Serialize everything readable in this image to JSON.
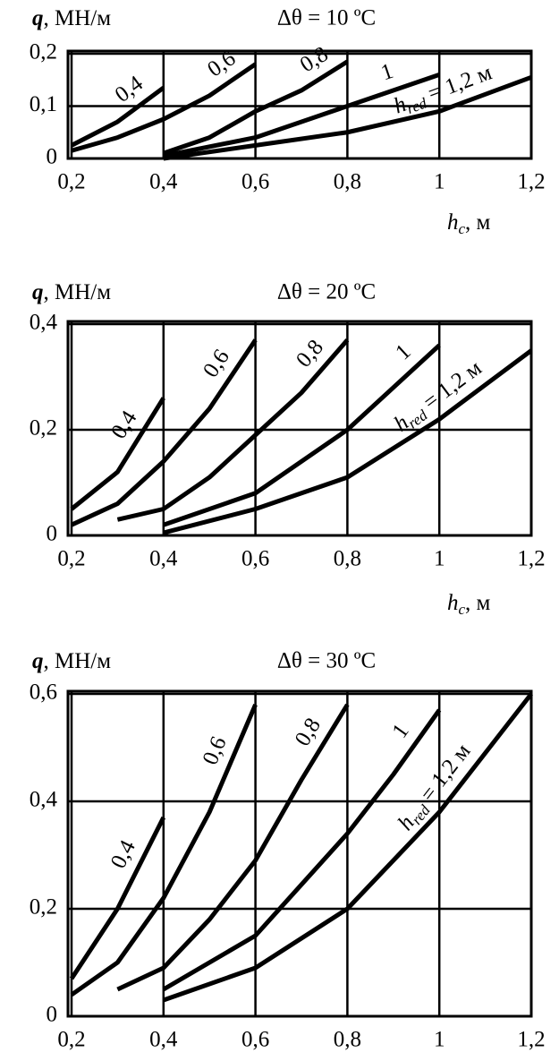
{
  "chart_data": [
    {
      "type": "line",
      "title": "Δθ = 10 ºC",
      "y_label": [
        "q",
        ", МН/м"
      ],
      "x_label": [
        "h",
        "c",
        ", м"
      ],
      "hred": [
        "h",
        "red",
        " = "
      ],
      "xlim": [
        0.2,
        1.2
      ],
      "ylim": [
        0,
        0.2
      ],
      "grid": true,
      "color": "#000000",
      "xticks": [
        {
          "value": 0.2,
          "label": "0,2"
        },
        {
          "value": 0.4,
          "label": "0,4"
        },
        {
          "value": 0.6,
          "label": "0,6"
        },
        {
          "value": 0.8,
          "label": "0,8"
        },
        1,
        {
          "value": 1.2,
          "label": "1,2"
        }
      ],
      "yticks": [
        0,
        {
          "value": 0.1,
          "label": "0,1"
        },
        {
          "value": 0.2,
          "label": "0,2"
        }
      ],
      "series": [
        {
          "name": "0,4",
          "x": [
            0.2,
            0.3,
            0.4
          ],
          "values": [
            0.025,
            0.07,
            0.135
          ]
        },
        {
          "name": "0,6",
          "x": [
            0.2,
            0.3,
            0.4,
            0.5,
            0.6
          ],
          "values": [
            0.015,
            0.04,
            0.075,
            0.12,
            0.18
          ]
        },
        {
          "name": "0,8",
          "x": [
            0.4,
            0.5,
            0.6,
            0.7,
            0.8
          ],
          "values": [
            0.01,
            0.04,
            0.09,
            0.13,
            0.185
          ]
        },
        {
          "name": "1",
          "x": [
            0.4,
            0.6,
            0.8,
            1
          ],
          "values": [
            0.005,
            0.04,
            0.1,
            0.16
          ]
        },
        {
          "name": "1,2 м",
          "x": [
            0.4,
            0.6,
            0.8,
            1,
            1.2
          ],
          "values": [
            0,
            0.025,
            0.05,
            0.09,
            0.155
          ]
        }
      ]
    },
    {
      "type": "line",
      "title": "Δθ = 20 ºC",
      "y_label": [
        "q",
        ", МН/м"
      ],
      "x_label": [
        "h",
        "c",
        ", м"
      ],
      "hred": [
        "h",
        "red",
        " = "
      ],
      "xlim": [
        0.2,
        1.2
      ],
      "ylim": [
        0,
        0.4
      ],
      "grid": true,
      "color": "#000000",
      "xticks": [
        {
          "value": 0.2,
          "label": "0,2"
        },
        {
          "value": 0.4,
          "label": "0,4"
        },
        {
          "value": 0.6,
          "label": "0,6"
        },
        {
          "value": 0.8,
          "label": "0,8"
        },
        1,
        {
          "value": 1.2,
          "label": "1,2"
        }
      ],
      "yticks": [
        0,
        {
          "value": 0.2,
          "label": "0,2"
        },
        {
          "value": 0.4,
          "label": "0,4"
        }
      ],
      "series": [
        {
          "name": "0,4",
          "x": [
            0.2,
            0.3,
            0.4
          ],
          "values": [
            0.05,
            0.12,
            0.26
          ]
        },
        {
          "name": "0,6",
          "x": [
            0.2,
            0.3,
            0.4,
            0.5,
            0.6
          ],
          "values": [
            0.02,
            0.06,
            0.14,
            0.24,
            0.37
          ]
        },
        {
          "name": "0,8",
          "x": [
            0.3,
            0.4,
            0.5,
            0.6,
            0.7,
            0.8
          ],
          "values": [
            0.03,
            0.05,
            0.11,
            0.19,
            0.27,
            0.37
          ]
        },
        {
          "name": "1",
          "x": [
            0.4,
            0.6,
            0.8,
            0.9,
            1
          ],
          "values": [
            0.02,
            0.08,
            0.2,
            0.28,
            0.36
          ]
        },
        {
          "name": "1,2 м",
          "x": [
            0.4,
            0.6,
            0.8,
            1,
            1.2
          ],
          "values": [
            0.005,
            0.05,
            0.11,
            0.22,
            0.35
          ]
        }
      ]
    },
    {
      "type": "line",
      "title": "Δθ = 30 ºC",
      "y_label": [
        "q",
        ", МН/м"
      ],
      "hred": [
        "h",
        "red",
        " = "
      ],
      "xlim": [
        0.2,
        1.2
      ],
      "ylim": [
        0,
        0.6
      ],
      "grid": true,
      "color": "#000000",
      "xticks": [
        {
          "value": 0.2,
          "label": "0,2"
        },
        {
          "value": 0.4,
          "label": "0,4"
        },
        {
          "value": 0.6,
          "label": "0,6"
        },
        {
          "value": 0.8,
          "label": "0,8"
        },
        1,
        {
          "value": 1.2,
          "label": "1,2"
        }
      ],
      "yticks": [
        0,
        {
          "value": 0.2,
          "label": "0,2"
        },
        {
          "value": 0.4,
          "label": "0,4"
        },
        {
          "value": 0.6,
          "label": "0,6"
        }
      ],
      "series": [
        {
          "name": "0,4",
          "x": [
            0.2,
            0.3,
            0.4
          ],
          "values": [
            0.07,
            0.2,
            0.37
          ]
        },
        {
          "name": "0,6",
          "x": [
            0.2,
            0.3,
            0.4,
            0.5,
            0.6
          ],
          "values": [
            0.04,
            0.1,
            0.22,
            0.38,
            0.58
          ]
        },
        {
          "name": "0,8",
          "x": [
            0.3,
            0.4,
            0.5,
            0.6,
            0.7,
            0.8
          ],
          "values": [
            0.05,
            0.09,
            0.18,
            0.29,
            0.44,
            0.58
          ]
        },
        {
          "name": "1",
          "x": [
            0.4,
            0.6,
            0.8,
            0.9,
            1
          ],
          "values": [
            0.05,
            0.15,
            0.34,
            0.45,
            0.57
          ]
        },
        {
          "name": "1,2 м",
          "x": [
            0.4,
            0.6,
            0.8,
            1,
            1.2
          ],
          "values": [
            0.03,
            0.09,
            0.2,
            0.38,
            0.6
          ]
        }
      ]
    }
  ]
}
